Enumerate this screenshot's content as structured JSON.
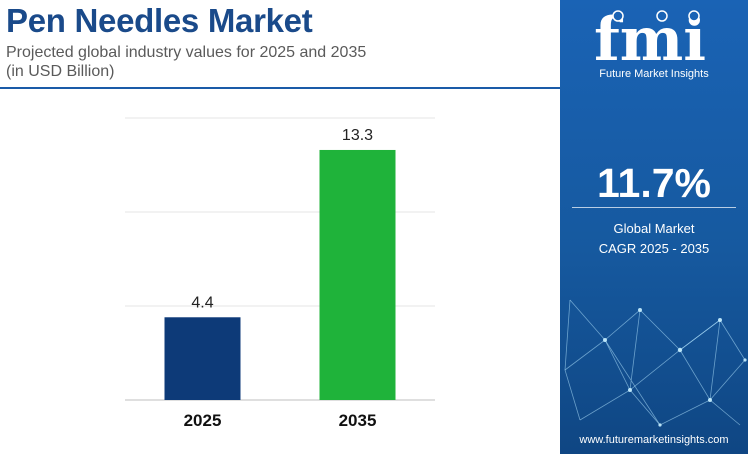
{
  "header": {
    "title": "Pen Needles Market",
    "subtitle_line1": "Projected global industry values for 2025 and 2035",
    "subtitle_line2": "(in USD Billion)"
  },
  "chart_data": {
    "type": "bar",
    "categories": [
      "2025",
      "2035"
    ],
    "values": [
      4.4,
      13.3
    ],
    "data_labels": [
      "4.4",
      "13.3"
    ],
    "bar_colors": [
      "#0d3a78",
      "#1fb33a"
    ],
    "ylim": [
      0,
      15
    ],
    "gridlines": [
      0,
      5,
      10,
      15
    ],
    "grid": true,
    "legend": "none",
    "title": "",
    "xlabel": "",
    "ylabel": ""
  },
  "sidebar": {
    "logo_text": "fmi",
    "logo_tagline": "Future Market Insights",
    "cagr_value": "11.7%",
    "cagr_label_line1": "Global Market",
    "cagr_label_line2": "CAGR 2025 - 2035",
    "url": "www.futuremarketinsights.com"
  },
  "colors": {
    "title": "#1a4a8a",
    "sidebar": "#1a63b5",
    "accent_rule": "#1a5ba8"
  }
}
